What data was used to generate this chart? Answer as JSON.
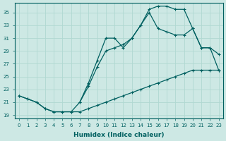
{
  "xlabel": "Humidex (Indice chaleur)",
  "bg_color": "#cde8e4",
  "line_color": "#006060",
  "grid_color": "#b0d8d2",
  "xlim": [
    -0.5,
    23.5
  ],
  "ylim": [
    18.5,
    36.5
  ],
  "yticks": [
    19,
    21,
    23,
    25,
    27,
    29,
    31,
    33,
    35
  ],
  "xticks": [
    0,
    1,
    2,
    3,
    4,
    5,
    6,
    7,
    8,
    9,
    10,
    11,
    12,
    13,
    14,
    15,
    16,
    17,
    18,
    19,
    20,
    21,
    22,
    23
  ],
  "series1_x": [
    0,
    1,
    2,
    3,
    4,
    5,
    6,
    7,
    8,
    9,
    10,
    11,
    12,
    13,
    14,
    15,
    16,
    17,
    18,
    19,
    20,
    21,
    22,
    23
  ],
  "series1_y": [
    22.0,
    21.5,
    21.0,
    20.0,
    19.5,
    19.5,
    19.5,
    19.5,
    20.0,
    20.5,
    21.0,
    21.5,
    22.0,
    22.5,
    23.0,
    23.5,
    24.0,
    24.5,
    25.0,
    25.5,
    26.0,
    26.0,
    26.0,
    26.0
  ],
  "series2_x": [
    0,
    1,
    2,
    3,
    4,
    5,
    6,
    7,
    8,
    9,
    10,
    11,
    12,
    13,
    14,
    15,
    16,
    17,
    18,
    19,
    20,
    21,
    22,
    23
  ],
  "series2_y": [
    22.0,
    21.5,
    21.0,
    20.0,
    19.5,
    19.5,
    19.5,
    21.0,
    24.0,
    27.5,
    31.0,
    31.0,
    29.5,
    31.0,
    33.0,
    35.5,
    36.0,
    36.0,
    35.5,
    35.5,
    32.5,
    29.5,
    29.5,
    28.5
  ],
  "series3_x": [
    7,
    8,
    9,
    10,
    11,
    12,
    13,
    14,
    15,
    16,
    17,
    18,
    19,
    20,
    21,
    22,
    23
  ],
  "series3_y": [
    21.0,
    23.5,
    26.5,
    29.0,
    29.5,
    30.0,
    31.0,
    33.0,
    35.0,
    32.5,
    32.0,
    31.5,
    31.5,
    32.5,
    29.5,
    29.5,
    26.0
  ]
}
